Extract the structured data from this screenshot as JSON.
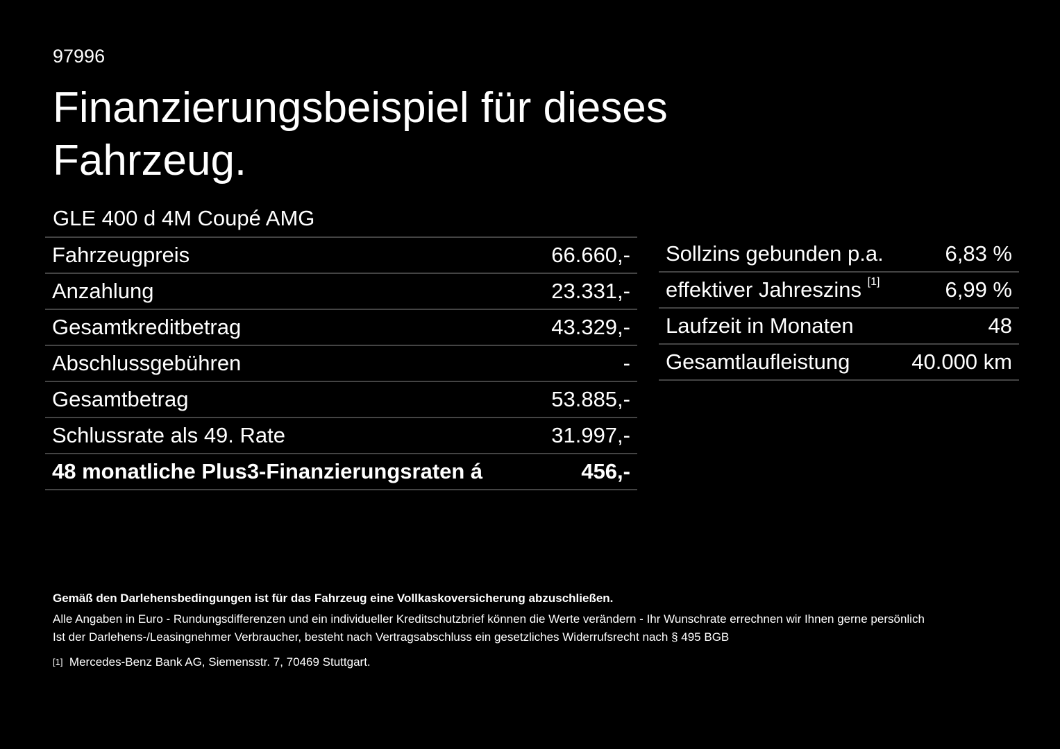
{
  "header": {
    "id": "97996",
    "title_line1": "Finanzierungsbeispiel für dieses",
    "title_line2": "Fahrzeug."
  },
  "model": "GLE 400 d 4M Coupé AMG",
  "left_table": {
    "rows": [
      [
        "Fahrzeugpreis",
        "66.660,-"
      ],
      [
        "Anzahlung",
        "23.331,-"
      ],
      [
        "Gesamtkreditbetrag",
        "43.329,-"
      ],
      [
        "Abschlussgebühren",
        "-"
      ],
      [
        "Gesamtbetrag",
        "53.885,-"
      ],
      [
        "Schlussrate als 49. Rate",
        "31.997,-"
      ],
      [
        "48 monatliche Plus3-Finanzierungsraten á",
        "456,-"
      ]
    ]
  },
  "right_table": {
    "rows": [
      [
        "Sollzins gebunden p.a.",
        "6,83 %"
      ],
      [
        "effektiver Jahreszins",
        "6,99 %"
      ],
      [
        "Laufzeit in Monaten",
        "48"
      ],
      [
        "Gesamtlaufleistung",
        "40.000 km"
      ]
    ],
    "footnote_ref": "[1]"
  },
  "footer": {
    "bold": "Gemäß den Darlehensbedingungen ist für das Fahrzeug eine Vollkaskoversicherung abzuschließen.",
    "line1": "Alle Angaben in Euro - Rundungsdifferenzen und ein individueller Kreditschutzbrief können die Werte verändern - Ihr Wunschrate errechnen wir Ihnen gerne persönlich",
    "line2": "Ist der Darlehens-/Leasingnehmer Verbraucher, besteht nach Vertragsabschluss ein gesetzliches Widerrufsrecht nach § 495 BGB",
    "note_mark": "[1]",
    "note_text": "Mercedes-Benz Bank AG, Siemensstr. 7, 70469 Stuttgart."
  }
}
